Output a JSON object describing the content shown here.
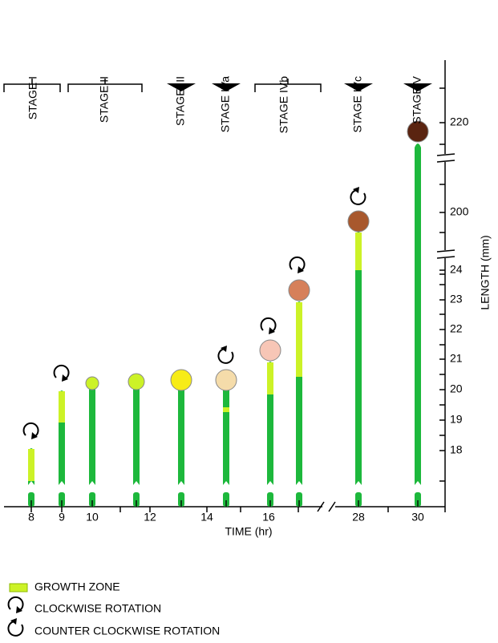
{
  "stages": [
    "STAGE  I",
    "STAGE  II",
    "STAGE  III",
    "STAGE  IVa",
    "STAGE  IVb",
    "STAGE  IVc",
    "STAGE  V"
  ],
  "x_axis": {
    "label": "TIME (hr)",
    "ticks": [
      8,
      9,
      10,
      12,
      14,
      16,
      28,
      30
    ]
  },
  "y_axis": {
    "label": "LENGTH (mm)",
    "ticks": [
      18,
      19,
      20,
      21,
      22,
      23,
      24,
      200,
      220
    ]
  },
  "legend": [
    "GROWTH  ZONE",
    "CLOCKWISE ROTATION",
    "COUNTER CLOCKWISE ROTATION"
  ]
}
